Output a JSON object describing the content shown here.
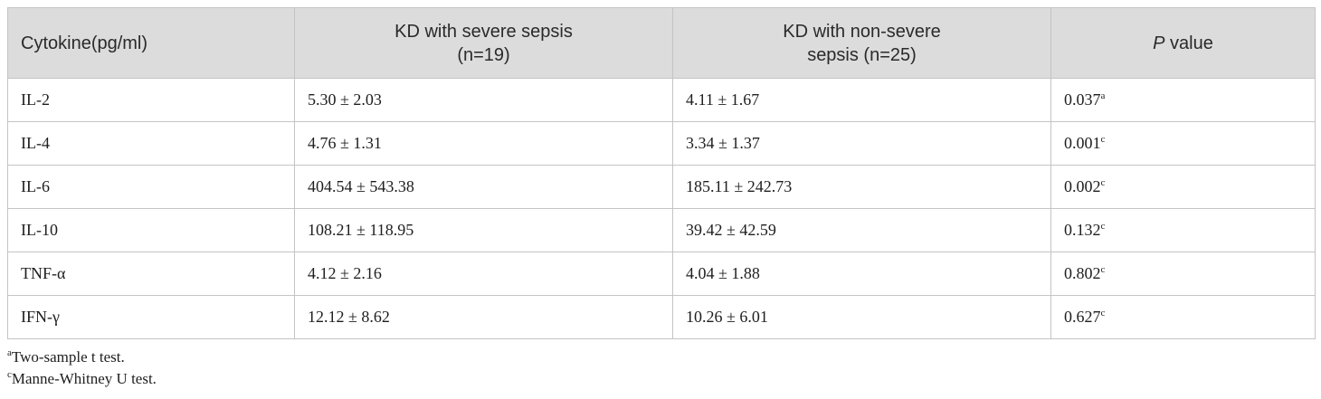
{
  "table": {
    "headers": {
      "cytokine": "Cytokine(pg/ml)",
      "severe_line1": "KD with severe sepsis",
      "severe_line2": "(n=19)",
      "nonsevere_line1": "KD with non-severe",
      "nonsevere_line2": "sepsis (n=25)",
      "p_italic": "P",
      "p_rest": " value"
    },
    "rows": [
      {
        "cytokine": "IL-2",
        "severe": "5.30 ± 2.03",
        "nonsevere": "4.11 ± 1.67",
        "p": "0.037",
        "sup": "a"
      },
      {
        "cytokine": "IL-4",
        "severe": "4.76 ± 1.31",
        "nonsevere": "3.34 ± 1.37",
        "p": "0.001",
        "sup": "c"
      },
      {
        "cytokine": "IL-6",
        "severe": "404.54 ± 543.38",
        "nonsevere": "185.11 ± 242.73",
        "p": "0.002",
        "sup": "c"
      },
      {
        "cytokine": "IL-10",
        "severe": "108.21 ± 118.95",
        "nonsevere": "39.42 ± 42.59",
        "p": "0.132",
        "sup": "c"
      },
      {
        "cytokine": "TNF-α",
        "severe": "4.12 ± 2.16",
        "nonsevere": "4.04 ± 1.88",
        "p": "0.802",
        "sup": "c"
      },
      {
        "cytokine": "IFN-γ",
        "severe": "12.12 ± 8.62",
        "nonsevere": "10.26 ± 6.01",
        "p": "0.627",
        "sup": "c"
      }
    ]
  },
  "footnotes": [
    {
      "mark": "a",
      "text": "Two-sample t test."
    },
    {
      "mark": "c",
      "text": "Manne-Whitney U test."
    }
  ]
}
